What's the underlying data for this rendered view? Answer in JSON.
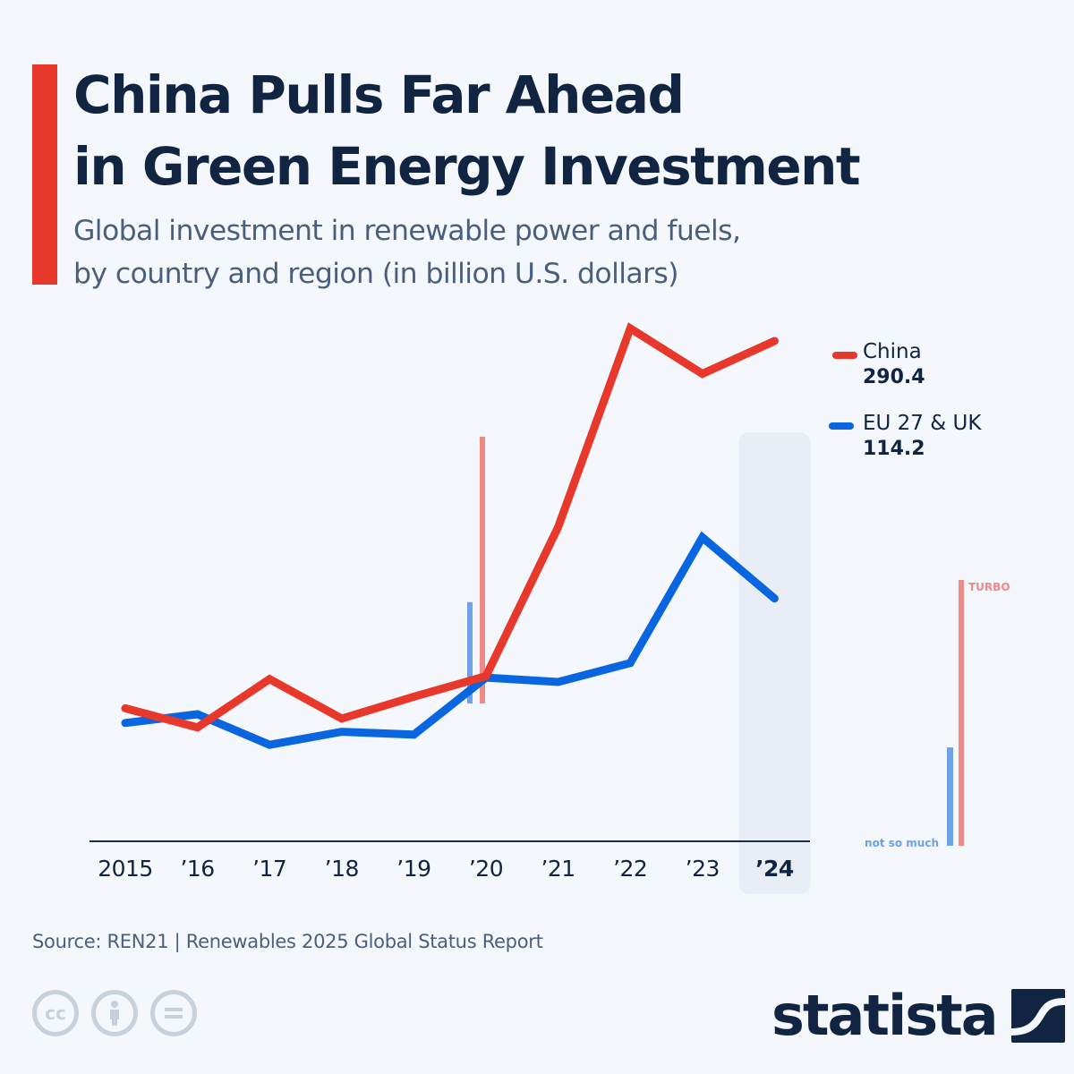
{
  "header": {
    "title_line1": "China Pulls Far Ahead",
    "title_line2": "in Green Energy Investment",
    "subtitle_line1": "Global investment in renewable power and fuels,",
    "subtitle_line2": "by country and region (in billion U.S. dollars)"
  },
  "colors": {
    "accent": "#e8372b",
    "china": "#e8372b",
    "eu": "#0a66e0",
    "text_dark": "#112441",
    "highlight": "#e9eef6",
    "annot_red": "#ef8a85",
    "annot_blue": "#6fa1e6"
  },
  "chart_data": {
    "type": "line",
    "title": "China Pulls Far Ahead in Green Energy Investment",
    "subtitle": "Global investment in renewable power and fuels, by country and region (in billion U.S. dollars)",
    "xlabel": "",
    "ylabel": "billion U.S. dollars",
    "categories": [
      "2015",
      "'16",
      "'17",
      "'18",
      "'19",
      "'20",
      "'21",
      "'22",
      "'23",
      "'24"
    ],
    "highlight_category": "'24",
    "ylim": [
      -52,
      340
    ],
    "grid": false,
    "legend_position": "right",
    "series": [
      {
        "name": "China",
        "key": "china",
        "end_label": "290.4",
        "values": [
          39,
          26,
          59,
          32,
          47,
          61,
          163,
          299,
          268,
          290.4
        ]
      },
      {
        "name": "EU 27 & UK",
        "key": "eu",
        "end_label": "114.2",
        "values": [
          29,
          35,
          14,
          23,
          21,
          60,
          57,
          70,
          156,
          114.2
        ]
      }
    ],
    "annotations": {
      "mid_bars": {
        "category": "'20",
        "china_relative": 1.0,
        "eu_relative": 0.38
      },
      "side_bars": {
        "turbo_label": "TURBO",
        "not_so_much_label": "not so much",
        "turbo_relative": 1.0,
        "not_so_much_relative": 0.37
      }
    }
  },
  "footer": {
    "source": "Source: REN21 | Renewables 2025 Global Status Report",
    "cc_icons": [
      "cc-icon",
      "attribution-icon",
      "no-derivatives-icon"
    ],
    "cc_label": "cc",
    "equals_label": "=",
    "logo_text": "statista"
  }
}
